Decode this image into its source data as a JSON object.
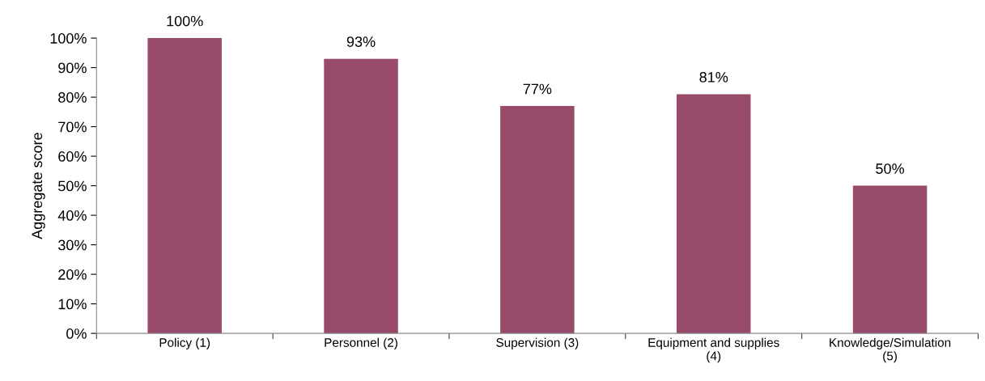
{
  "chart_data": {
    "type": "bar",
    "ylabel": "Aggregate score",
    "categories": [
      "Policy (1)",
      "Personnel (2)",
      "Supervision (3)",
      "Equipment and supplies\n(4)",
      "Knowledge/Simulation\n(5)"
    ],
    "values": [
      100,
      93,
      77,
      81,
      50
    ],
    "value_labels": [
      "100%",
      "93%",
      "77%",
      "81%",
      "50%"
    ],
    "color": "#974a6a",
    "ylim": [
      0,
      100
    ],
    "yticks": [
      {
        "value": 0,
        "label": "0%"
      },
      {
        "value": 10,
        "label": "10%"
      },
      {
        "value": 20,
        "label": "20%"
      },
      {
        "value": 30,
        "label": "30%"
      },
      {
        "value": 40,
        "label": "40%"
      },
      {
        "value": 50,
        "label": "50%"
      },
      {
        "value": 60,
        "label": "60%"
      },
      {
        "value": 70,
        "label": "70%"
      },
      {
        "value": 80,
        "label": "80%"
      },
      {
        "value": 90,
        "label": "90%"
      },
      {
        "value": 100,
        "label": "100%"
      }
    ],
    "grid": false
  }
}
